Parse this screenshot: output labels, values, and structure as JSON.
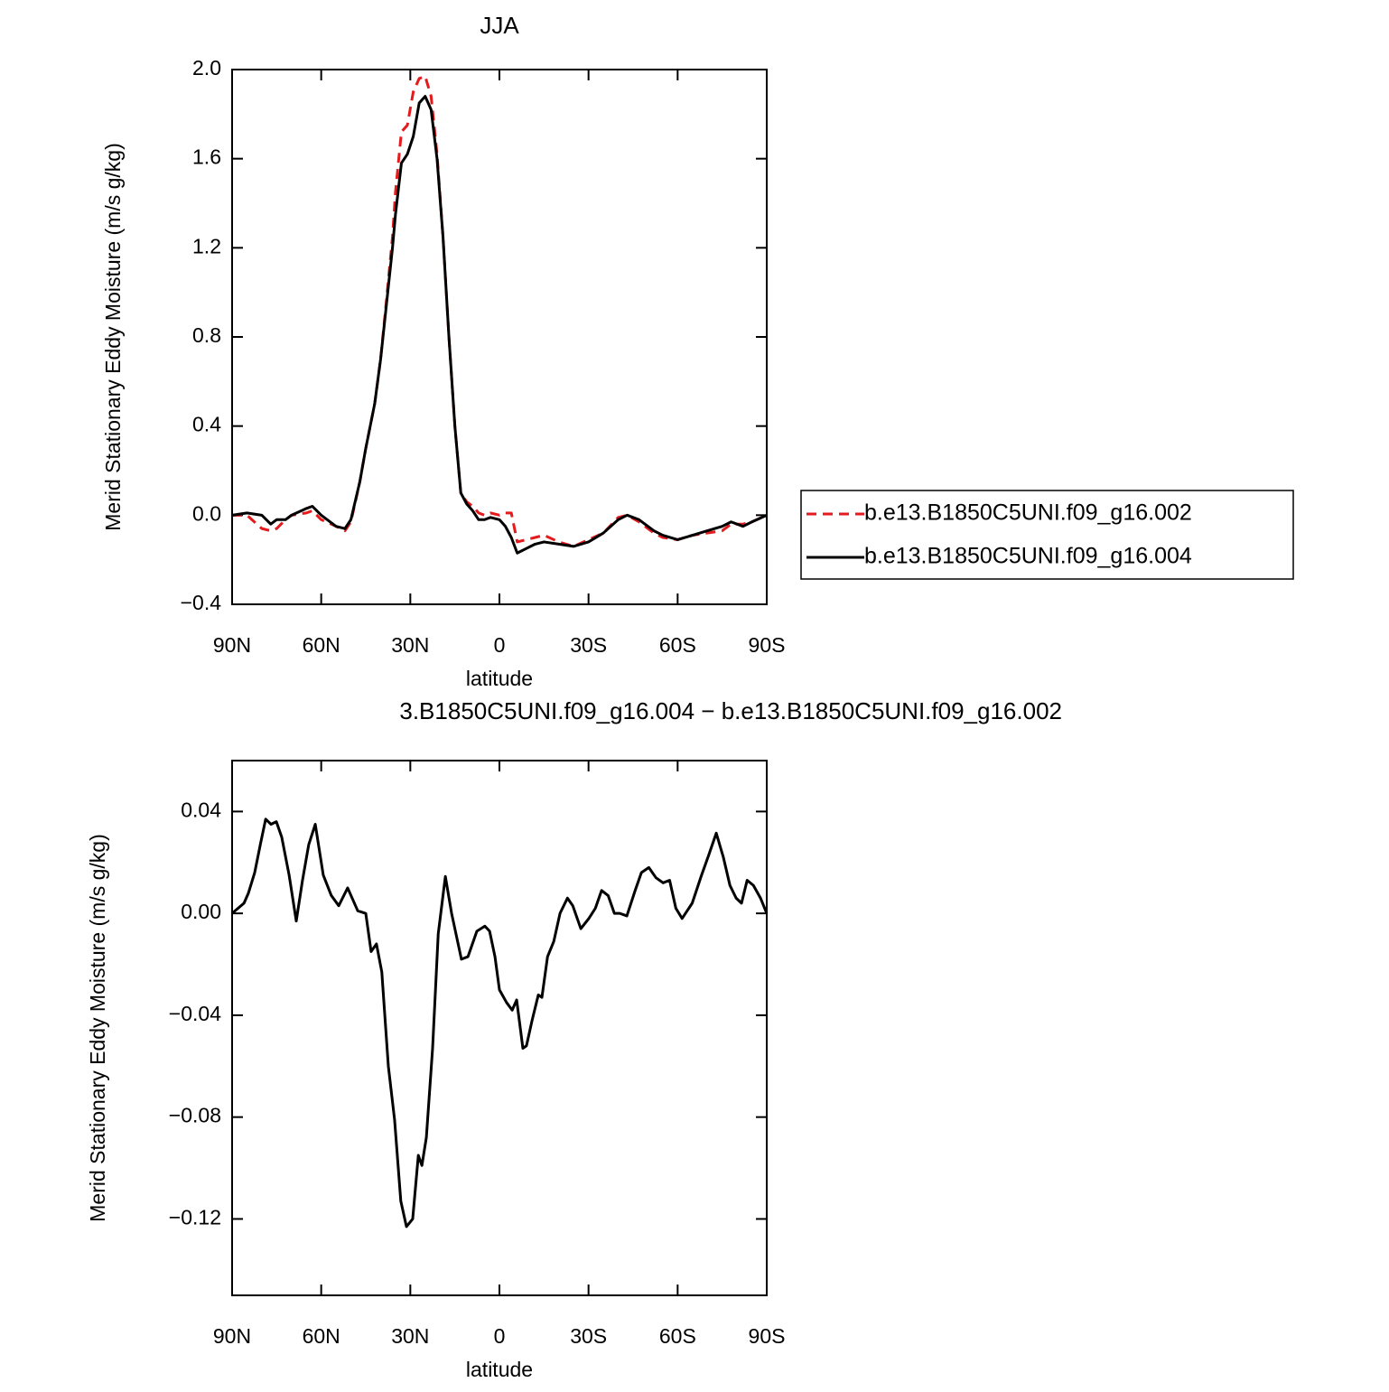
{
  "chart_data": [
    {
      "type": "line",
      "title": "JJA",
      "ylabel": "Merid Stationary Eddy Moisture (m/s g/kg)",
      "xlabel": "latitude",
      "x": [
        90,
        85,
        80,
        77,
        75,
        72,
        70,
        65,
        63,
        60,
        55,
        52,
        50,
        47,
        45,
        42,
        40,
        38,
        36,
        35,
        33,
        31,
        29,
        27,
        25,
        23,
        21,
        19,
        17,
        15,
        13,
        11,
        9,
        7,
        5,
        3,
        0,
        -2,
        -4,
        -6,
        -9,
        -12,
        -15,
        -20,
        -25,
        -30,
        -35,
        -40,
        -43,
        -47,
        -52,
        -55,
        -60,
        -65,
        -70,
        -75,
        -78,
        -82,
        -85,
        -90
      ],
      "xlim": [
        90,
        -90
      ],
      "xticks": [
        {
          "value": 90,
          "label": "90N"
        },
        {
          "value": 60,
          "label": "60N"
        },
        {
          "value": 30,
          "label": "30N"
        },
        0,
        {
          "value": -30,
          "label": "30S"
        },
        {
          "value": -60,
          "label": "60S"
        },
        {
          "value": -90,
          "label": "90S"
        }
      ],
      "ylim": [
        -0.4,
        2.0
      ],
      "yticks": [
        {
          "value": -0.4,
          "label": "−0.4"
        },
        {
          "value": 0,
          "label": "0.0"
        },
        {
          "value": 0.4,
          "label": "0.4"
        },
        {
          "value": 0.8,
          "label": "0.8"
        },
        {
          "value": 1.2,
          "label": "1.2"
        },
        {
          "value": 1.6,
          "label": "1.6"
        },
        {
          "value": 2.0,
          "label": "2.0"
        }
      ],
      "legend": "right",
      "series": [
        {
          "name": "b.e13.B1850C5UNI.f09_g16.002",
          "color": "#e41a1c",
          "dash": true,
          "values": [
            0,
            0,
            -0.06,
            -0.07,
            -0.06,
            -0.02,
            0,
            0.01,
            0.02,
            -0.02,
            -0.05,
            -0.07,
            -0.03,
            0.15,
            0.3,
            0.5,
            0.7,
            0.97,
            1.25,
            1.45,
            1.72,
            1.75,
            1.9,
            1.96,
            1.97,
            1.88,
            1.62,
            1.25,
            0.8,
            0.4,
            0.1,
            0.06,
            0.04,
            0.01,
            0,
            0.01,
            0,
            0.01,
            0.01,
            -0.12,
            -0.11,
            -0.1,
            -0.09,
            -0.12,
            -0.14,
            -0.11,
            -0.08,
            -0.01,
            0,
            -0.03,
            -0.08,
            -0.1,
            -0.11,
            -0.09,
            -0.08,
            -0.07,
            -0.04,
            -0.04,
            -0.03,
            0
          ]
        },
        {
          "name": "b.e13.B1850C5UNI.f09_g16.004",
          "color": "#000000",
          "dash": false,
          "values": [
            0,
            0.01,
            0,
            -0.04,
            -0.02,
            -0.02,
            0,
            0.03,
            0.04,
            0,
            -0.05,
            -0.06,
            -0.02,
            0.15,
            0.3,
            0.5,
            0.7,
            0.95,
            1.2,
            1.35,
            1.58,
            1.62,
            1.7,
            1.85,
            1.88,
            1.82,
            1.6,
            1.25,
            0.8,
            0.4,
            0.1,
            0.05,
            0.02,
            -0.02,
            -0.02,
            -0.01,
            -0.02,
            -0.05,
            -0.1,
            -0.17,
            -0.15,
            -0.13,
            -0.12,
            -0.13,
            -0.14,
            -0.12,
            -0.08,
            -0.02,
            0,
            -0.02,
            -0.07,
            -0.09,
            -0.11,
            -0.09,
            -0.07,
            -0.05,
            -0.03,
            -0.05,
            -0.03,
            0
          ]
        }
      ]
    },
    {
      "type": "line",
      "title": "3.B1850C5UNI.f09_g16.004 − b.e13.B1850C5UNI.f09_g16.002",
      "ylabel": "Merid Stationary Eddy Moisture (m/s g/kg)",
      "xlabel": "latitude",
      "x": [
        90,
        86,
        84.5,
        82.4,
        80.5,
        78.7,
        76.9,
        75.1,
        73.3,
        70.8,
        68.4,
        66.3,
        64.2,
        62,
        59.3,
        56.6,
        54.1,
        51.1,
        47.7,
        45,
        43.2,
        41.4,
        39.6,
        37.4,
        35.3,
        33.2,
        31.3,
        29.2,
        27.3,
        26.1,
        24.6,
        22.5,
        20.6,
        18.2,
        16.1,
        12.8,
        10.6,
        7.6,
        4.9,
        3.3,
        1.5,
        0,
        -2.4,
        -4.3,
        -5.8,
        -7.9,
        -9.1,
        -11,
        -13.1,
        -14.3,
        -16.2,
        -18.3,
        -20.4,
        -22.9,
        -24.7,
        -27.4,
        -30.1,
        -32.3,
        -34.4,
        -36.6,
        -38.7,
        -40.5,
        -42.9,
        -45.7,
        -47.8,
        -50.3,
        -52.7,
        -55.1,
        -57.3,
        -59.4,
        -61.5,
        -64.9,
        -67.9,
        -70.5,
        -73,
        -75.4,
        -77.6,
        -79.7,
        -81.5,
        -83.4,
        -85.5,
        -87.9,
        -90
      ],
      "xlim": [
        90,
        -90
      ],
      "xticks": [
        {
          "value": 90,
          "label": "90N"
        },
        {
          "value": 60,
          "label": "60N"
        },
        {
          "value": 30,
          "label": "30N"
        },
        0,
        {
          "value": -30,
          "label": "30S"
        },
        {
          "value": -60,
          "label": "60S"
        },
        {
          "value": -90,
          "label": "90S"
        }
      ],
      "ylim": [
        -0.15,
        0.06
      ],
      "yticks": [
        {
          "value": -0.12,
          "label": "−0.12"
        },
        {
          "value": -0.08,
          "label": "−0.08"
        },
        {
          "value": -0.04,
          "label": "−0.04"
        },
        {
          "value": 0,
          "label": "0.00"
        },
        0.04
      ],
      "series": [
        {
          "color": "#000000",
          "dash": false,
          "values": [
            0,
            0.004,
            0.008,
            0.016,
            0.027,
            0.037,
            0.035,
            0.036,
            0.03,
            0.015,
            -0.003,
            0.013,
            0.027,
            0.035,
            0.015,
            0.007,
            0.003,
            0.01,
            0.001,
            0,
            -0.015,
            -0.012,
            -0.023,
            -0.06,
            -0.081,
            -0.113,
            -0.123,
            -0.12,
            -0.095,
            -0.099,
            -0.088,
            -0.053,
            -0.008,
            0.0145,
            0,
            -0.018,
            -0.017,
            -0.007,
            -0.005,
            -0.007,
            -0.017,
            -0.03,
            -0.035,
            -0.038,
            -0.034,
            -0.053,
            -0.052,
            -0.042,
            -0.032,
            -0.033,
            -0.017,
            -0.011,
            0,
            0.006,
            0.003,
            -0.006,
            -0.002,
            0.002,
            0.009,
            0.007,
            0,
            0,
            -0.001,
            0.009,
            0.016,
            0.018,
            0.014,
            0.012,
            0.013,
            0.002,
            -0.002,
            0.004,
            0.0145,
            0.023,
            0.0315,
            0.022,
            0.011,
            0.006,
            0.004,
            0.013,
            0.011,
            0.006,
            0
          ]
        }
      ]
    }
  ]
}
